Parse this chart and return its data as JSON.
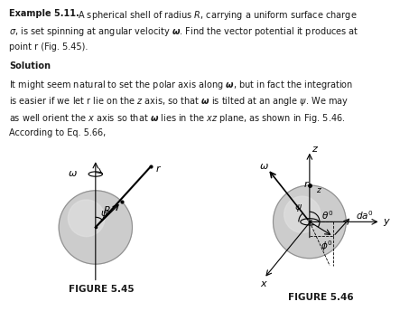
{
  "fig45_label": "FIGURE 5.45",
  "fig46_label": "FIGURE 5.46",
  "bg_color": "#ffffff",
  "text_color": "#1a1a1a",
  "sphere_color": "#cccccc",
  "sphere_highlight": "#e2e2e2",
  "sphere_edge": "#909090",
  "text_lines": [
    [
      "bold",
      "Example 5.11."
    ],
    [
      "normal",
      "  A spherical shell of radius $R$, carrying a uniform surface charge"
    ],
    [
      "normal",
      "$\\sigma$, is set spinning at angular velocity $\\boldsymbol{\\omega}$. Find the vector potential it produces at"
    ],
    [
      "normal",
      "point r (Fig. 5.45)."
    ],
    [
      "bold",
      "Solution"
    ],
    [
      "normal",
      "It might seem natural to set the polar axis along $\\boldsymbol{\\omega}$, but in fact the integration"
    ],
    [
      "normal",
      "is easier if we let r lie on the $z$ axis, so that $\\boldsymbol{\\omega}$ is tilted at an angle $\\psi$. We may"
    ],
    [
      "normal",
      "as well orient the $x$ axis so that $\\boldsymbol{\\omega}$ lies in the $xz$ plane, as shown in Fig. 5.46."
    ],
    [
      "normal",
      "According to Eq. 5.66,"
    ]
  ]
}
